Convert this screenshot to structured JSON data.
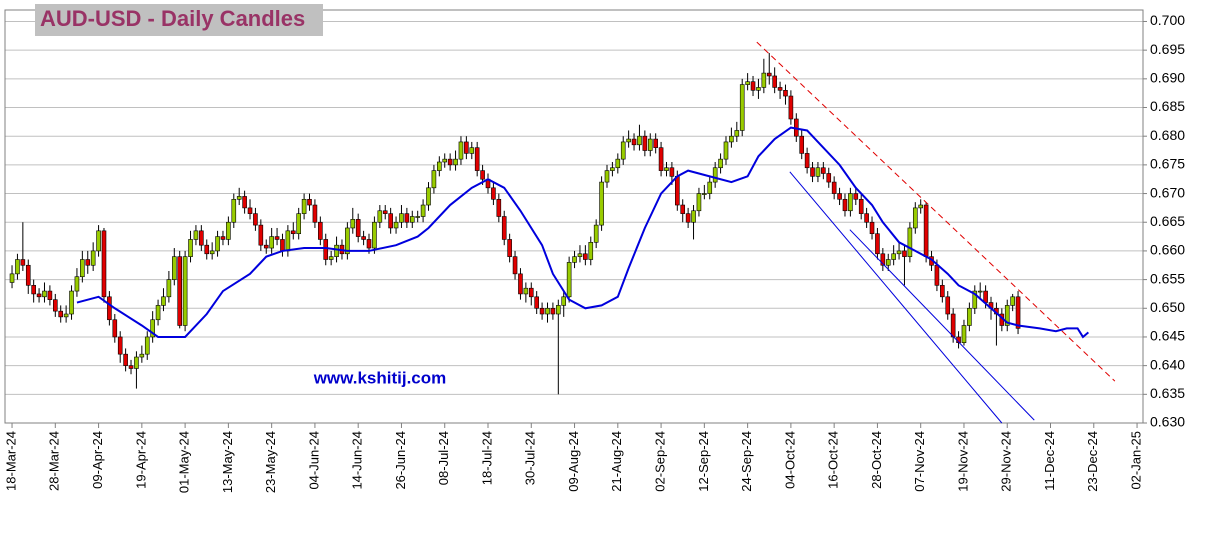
{
  "chart_data": {
    "type": "candlestick",
    "title": "AUD-USD - Daily Candles",
    "annotation": "www.kshitij.com",
    "up_color": "#99cc00",
    "down_color": "#e00000",
    "grid": true,
    "xlim": [
      -1.3,
      209.1
    ],
    "ylim": [
      0.63,
      0.702
    ],
    "yticks": [
      {
        "value": 0.63,
        "label": "0.630"
      },
      0.635,
      {
        "value": 0.64,
        "label": "0.640"
      },
      0.645,
      {
        "value": 0.65,
        "label": "0.650"
      },
      0.655,
      {
        "value": 0.66,
        "label": "0.660"
      },
      0.665,
      {
        "value": 0.67,
        "label": "0.670"
      },
      0.675,
      {
        "value": 0.68,
        "label": "0.680"
      },
      0.685,
      {
        "value": 0.69,
        "label": "0.690"
      },
      0.695,
      {
        "value": 0.7,
        "label": "0.700"
      }
    ],
    "xticks": [
      {
        "value": 0,
        "label": "18-Mar-24"
      },
      {
        "value": 8,
        "label": "28-Mar-24"
      },
      {
        "value": 16,
        "label": "09-Apr-24"
      },
      {
        "value": 24,
        "label": "19-Apr-24"
      },
      {
        "value": 32,
        "label": "01-May-24"
      },
      {
        "value": 40,
        "label": "13-May-24"
      },
      {
        "value": 48,
        "label": "23-May-24"
      },
      {
        "value": 56,
        "label": "04-Jun-24"
      },
      {
        "value": 64,
        "label": "14-Jun-24"
      },
      {
        "value": 72,
        "label": "26-Jun-24"
      },
      {
        "value": 80,
        "label": "08-Jul-24"
      },
      {
        "value": 88,
        "label": "18-Jul-24"
      },
      {
        "value": 96,
        "label": "30-Jul-24"
      },
      {
        "value": 104,
        "label": "09-Aug-24"
      },
      {
        "value": 112,
        "label": "21-Aug-24"
      },
      {
        "value": 120,
        "label": "02-Sep-24"
      },
      {
        "value": 128,
        "label": "12-Sep-24"
      },
      {
        "value": 136,
        "label": "24-Sep-24"
      },
      {
        "value": 144,
        "label": "04-Oct-24"
      },
      {
        "value": 152,
        "label": "16-Oct-24"
      },
      {
        "value": 160,
        "label": "28-Oct-24"
      },
      {
        "value": 168,
        "label": "07-Nov-24"
      },
      {
        "value": 176,
        "label": "19-Nov-24"
      },
      {
        "value": 184,
        "label": "29-Nov-24"
      },
      {
        "value": 192,
        "label": "11-Dec-24"
      },
      {
        "value": 200,
        "label": "23-Dec-24"
      },
      {
        "value": 208,
        "label": "02-Jan-25"
      }
    ],
    "open": [
      0.6545,
      0.656,
      0.6585,
      0.6575,
      0.654,
      0.6525,
      0.652,
      0.653,
      0.6515,
      0.6495,
      0.6485,
      0.649,
      0.653,
      0.6555,
      0.6585,
      0.6575,
      0.66,
      0.6635,
      0.652,
      0.648,
      0.645,
      0.642,
      0.64,
      0.6395,
      0.6415,
      0.642,
      0.645,
      0.648,
      0.6505,
      0.652,
      0.655,
      0.659,
      0.647,
      0.659,
      0.662,
      0.6635,
      0.661,
      0.6595,
      0.66,
      0.6625,
      0.662,
      0.665,
      0.669,
      0.6695,
      0.6675,
      0.6665,
      0.6645,
      0.661,
      0.6605,
      0.6625,
      0.662,
      0.66,
      0.6635,
      0.663,
      0.6665,
      0.669,
      0.668,
      0.665,
      0.662,
      0.6585,
      0.659,
      0.661,
      0.6595,
      0.664,
      0.6655,
      0.6625,
      0.662,
      0.6605,
      0.665,
      0.667,
      0.6665,
      0.664,
      0.665,
      0.6665,
      0.665,
      0.666,
      0.666,
      0.668,
      0.671,
      0.674,
      0.6755,
      0.676,
      0.675,
      0.676,
      0.679,
      0.677,
      0.678,
      0.674,
      0.6725,
      0.671,
      0.669,
      0.666,
      0.662,
      0.659,
      0.656,
      0.6525,
      0.6535,
      0.652,
      0.65,
      0.649,
      0.65,
      0.649,
      0.6505,
      0.652,
      0.658,
      0.659,
      0.6595,
      0.6585,
      0.6615,
      0.6645,
      0.672,
      0.674,
      0.6745,
      0.676,
      0.679,
      0.6795,
      0.6785,
      0.68,
      0.6775,
      0.6795,
      0.678,
      0.674,
      0.6745,
      0.673,
      0.668,
      0.6665,
      0.665,
      0.667,
      0.67,
      0.67,
      0.672,
      0.6745,
      0.676,
      0.679,
      0.68,
      0.681,
      0.689,
      0.6895,
      0.688,
      0.6885,
      0.691,
      0.6905,
      0.6885,
      0.688,
      0.687,
      0.683,
      0.68,
      0.677,
      0.6745,
      0.673,
      0.6745,
      0.6735,
      0.672,
      0.67,
      0.669,
      0.667,
      0.67,
      0.669,
      0.6665,
      0.665,
      0.663,
      0.6595,
      0.6575,
      0.6585,
      0.6595,
      0.66,
      0.659,
      0.664,
      0.6675,
      0.668,
      0.659,
      0.6575,
      0.654,
      0.652,
      0.649,
      0.645,
      0.644,
      0.647,
      0.65,
      0.653,
      0.653,
      0.651,
      0.65,
      0.649,
      0.647,
      0.6505,
      0.652
    ],
    "high": [
      0.6575,
      0.6595,
      0.665,
      0.6585,
      0.655,
      0.6535,
      0.6545,
      0.654,
      0.6525,
      0.6505,
      0.6505,
      0.654,
      0.657,
      0.66,
      0.66,
      0.6615,
      0.6645,
      0.664,
      0.653,
      0.649,
      0.646,
      0.643,
      0.641,
      0.6425,
      0.6435,
      0.646,
      0.6495,
      0.6515,
      0.6535,
      0.6565,
      0.6605,
      0.66,
      0.66,
      0.6635,
      0.6645,
      0.6645,
      0.662,
      0.6615,
      0.6635,
      0.6635,
      0.666,
      0.67,
      0.671,
      0.6705,
      0.669,
      0.6675,
      0.6655,
      0.662,
      0.664,
      0.664,
      0.663,
      0.6645,
      0.665,
      0.6675,
      0.67,
      0.67,
      0.669,
      0.666,
      0.663,
      0.66,
      0.6625,
      0.662,
      0.665,
      0.6675,
      0.6665,
      0.6635,
      0.663,
      0.666,
      0.668,
      0.668,
      0.6675,
      0.666,
      0.668,
      0.6675,
      0.667,
      0.667,
      0.669,
      0.672,
      0.675,
      0.6765,
      0.677,
      0.677,
      0.6775,
      0.68,
      0.68,
      0.679,
      0.679,
      0.675,
      0.6735,
      0.672,
      0.67,
      0.667,
      0.663,
      0.66,
      0.657,
      0.6545,
      0.6545,
      0.653,
      0.651,
      0.651,
      0.651,
      0.6515,
      0.653,
      0.659,
      0.66,
      0.661,
      0.661,
      0.6625,
      0.6655,
      0.673,
      0.675,
      0.6755,
      0.677,
      0.68,
      0.681,
      0.6805,
      0.682,
      0.681,
      0.6805,
      0.6805,
      0.679,
      0.6755,
      0.6755,
      0.674,
      0.669,
      0.6675,
      0.668,
      0.671,
      0.6715,
      0.673,
      0.6755,
      0.677,
      0.68,
      0.6815,
      0.6825,
      0.69,
      0.691,
      0.6905,
      0.69,
      0.6935,
      0.6945,
      0.692,
      0.6895,
      0.689,
      0.688,
      0.684,
      0.681,
      0.678,
      0.6755,
      0.6755,
      0.6755,
      0.6745,
      0.673,
      0.671,
      0.67,
      0.671,
      0.671,
      0.67,
      0.6675,
      0.666,
      0.664,
      0.6605,
      0.6595,
      0.661,
      0.6615,
      0.661,
      0.665,
      0.6685,
      0.669,
      0.6685,
      0.66,
      0.6585,
      0.655,
      0.653,
      0.65,
      0.646,
      0.648,
      0.651,
      0.654,
      0.6545,
      0.654,
      0.652,
      0.651,
      0.65,
      0.6515,
      0.6525,
      0.653
    ],
    "low": [
      0.6535,
      0.655,
      0.6565,
      0.6525,
      0.651,
      0.651,
      0.651,
      0.6505,
      0.6485,
      0.6475,
      0.6475,
      0.648,
      0.652,
      0.6545,
      0.656,
      0.6565,
      0.659,
      0.651,
      0.647,
      0.644,
      0.6405,
      0.639,
      0.6385,
      0.636,
      0.6405,
      0.641,
      0.644,
      0.647,
      0.6495,
      0.651,
      0.654,
      0.6465,
      0.646,
      0.658,
      0.661,
      0.66,
      0.6585,
      0.6585,
      0.659,
      0.661,
      0.661,
      0.664,
      0.668,
      0.6665,
      0.6655,
      0.6635,
      0.66,
      0.6595,
      0.6595,
      0.661,
      0.659,
      0.659,
      0.662,
      0.662,
      0.6655,
      0.667,
      0.664,
      0.661,
      0.6575,
      0.6575,
      0.658,
      0.6585,
      0.6585,
      0.663,
      0.6615,
      0.661,
      0.6595,
      0.6595,
      0.664,
      0.6655,
      0.663,
      0.663,
      0.664,
      0.664,
      0.664,
      0.665,
      0.665,
      0.667,
      0.67,
      0.673,
      0.6745,
      0.674,
      0.674,
      0.675,
      0.676,
      0.676,
      0.673,
      0.6715,
      0.67,
      0.668,
      0.665,
      0.661,
      0.658,
      0.655,
      0.6515,
      0.651,
      0.6505,
      0.649,
      0.648,
      0.6475,
      0.648,
      0.635,
      0.6485,
      0.651,
      0.657,
      0.658,
      0.6575,
      0.6575,
      0.6605,
      0.6635,
      0.671,
      0.673,
      0.6735,
      0.675,
      0.678,
      0.6775,
      0.6775,
      0.6765,
      0.6765,
      0.677,
      0.673,
      0.673,
      0.6715,
      0.667,
      0.665,
      0.664,
      0.662,
      0.666,
      0.669,
      0.669,
      0.671,
      0.6735,
      0.675,
      0.678,
      0.679,
      0.68,
      0.688,
      0.687,
      0.6865,
      0.6875,
      0.689,
      0.6875,
      0.6865,
      0.6855,
      0.682,
      0.679,
      0.676,
      0.6735,
      0.672,
      0.672,
      0.6725,
      0.671,
      0.669,
      0.668,
      0.666,
      0.666,
      0.668,
      0.6655,
      0.664,
      0.662,
      0.6585,
      0.6565,
      0.6565,
      0.6575,
      0.6585,
      0.654,
      0.658,
      0.663,
      0.6665,
      0.658,
      0.6565,
      0.653,
      0.651,
      0.648,
      0.644,
      0.643,
      0.6435,
      0.646,
      0.649,
      0.6515,
      0.65,
      0.648,
      0.6435,
      0.646,
      0.646,
      0.6495,
      0.6455
    ],
    "close": [
      0.656,
      0.6585,
      0.6575,
      0.654,
      0.6525,
      0.652,
      0.653,
      0.6515,
      0.6495,
      0.6485,
      0.649,
      0.653,
      0.6555,
      0.6585,
      0.6575,
      0.66,
      0.6635,
      0.652,
      0.648,
      0.645,
      0.642,
      0.64,
      0.6395,
      0.6415,
      0.642,
      0.645,
      0.648,
      0.6505,
      0.652,
      0.655,
      0.659,
      0.647,
      0.659,
      0.662,
      0.6635,
      0.661,
      0.6595,
      0.66,
      0.6625,
      0.662,
      0.665,
      0.669,
      0.6695,
      0.6675,
      0.6665,
      0.6645,
      0.661,
      0.6605,
      0.6625,
      0.662,
      0.66,
      0.6635,
      0.663,
      0.6665,
      0.669,
      0.668,
      0.665,
      0.662,
      0.6585,
      0.659,
      0.661,
      0.6595,
      0.664,
      0.6655,
      0.6625,
      0.662,
      0.6605,
      0.665,
      0.667,
      0.6665,
      0.664,
      0.665,
      0.6665,
      0.665,
      0.666,
      0.666,
      0.668,
      0.671,
      0.674,
      0.6755,
      0.676,
      0.675,
      0.676,
      0.679,
      0.677,
      0.678,
      0.674,
      0.6725,
      0.671,
      0.669,
      0.666,
      0.662,
      0.659,
      0.656,
      0.6525,
      0.6535,
      0.652,
      0.65,
      0.649,
      0.65,
      0.649,
      0.6505,
      0.652,
      0.658,
      0.659,
      0.6595,
      0.6585,
      0.6615,
      0.6645,
      0.672,
      0.674,
      0.6745,
      0.676,
      0.679,
      0.6795,
      0.6785,
      0.68,
      0.6775,
      0.6795,
      0.678,
      0.674,
      0.6745,
      0.673,
      0.668,
      0.6665,
      0.665,
      0.667,
      0.67,
      0.67,
      0.672,
      0.6745,
      0.676,
      0.679,
      0.68,
      0.681,
      0.689,
      0.6895,
      0.688,
      0.6885,
      0.691,
      0.6905,
      0.6885,
      0.688,
      0.687,
      0.683,
      0.68,
      0.677,
      0.6745,
      0.673,
      0.6745,
      0.6735,
      0.672,
      0.67,
      0.669,
      0.667,
      0.67,
      0.669,
      0.6665,
      0.665,
      0.663,
      0.6595,
      0.6575,
      0.6585,
      0.6595,
      0.66,
      0.659,
      0.664,
      0.6675,
      0.668,
      0.659,
      0.6575,
      0.654,
      0.652,
      0.649,
      0.645,
      0.644,
      0.647,
      0.65,
      0.653,
      0.653,
      0.651,
      0.65,
      0.649,
      0.647,
      0.6505,
      0.652,
      0.6465
    ],
    "moving_average": {
      "color": "#0000dd",
      "x": [
        12,
        16,
        19,
        24,
        27,
        32,
        36,
        39,
        44,
        47,
        50,
        54,
        58,
        62,
        66,
        71,
        75,
        77,
        81,
        85,
        88,
        91,
        94,
        98,
        100,
        103,
        106,
        109,
        112,
        114,
        117,
        120,
        123,
        125,
        129,
        133,
        136,
        138,
        141,
        144,
        147,
        149,
        153,
        156,
        159,
        161,
        164,
        167,
        170,
        173,
        175,
        178,
        181,
        184,
        186,
        190,
        193,
        195,
        197,
        198,
        199
      ],
      "values": [
        0.651,
        0.652,
        0.65,
        0.647,
        0.645,
        0.645,
        0.649,
        0.653,
        0.656,
        0.659,
        0.66,
        0.6605,
        0.6605,
        0.66,
        0.66,
        0.661,
        0.6625,
        0.664,
        0.668,
        0.671,
        0.6725,
        0.671,
        0.667,
        0.661,
        0.656,
        0.6515,
        0.65,
        0.6505,
        0.652,
        0.657,
        0.664,
        0.67,
        0.673,
        0.674,
        0.673,
        0.672,
        0.673,
        0.6765,
        0.6795,
        0.6815,
        0.681,
        0.679,
        0.675,
        0.671,
        0.668,
        0.665,
        0.6615,
        0.66,
        0.6585,
        0.656,
        0.654,
        0.6525,
        0.65,
        0.6475,
        0.647,
        0.6465,
        0.646,
        0.6465,
        0.6465,
        0.645,
        0.6458
      ]
    },
    "trend_lines": [
      {
        "color": "#e00000",
        "style": "dashed",
        "x": [
          137.7,
          203.9
        ],
        "values": [
          0.6964,
          0.6373
        ]
      },
      {
        "color": "#0000dd",
        "style": "solid",
        "x": [
          143.8,
          183
        ],
        "values": [
          0.6738,
          0.63
        ]
      },
      {
        "color": "#0000dd",
        "style": "solid",
        "x": [
          154.9,
          189
        ],
        "values": [
          0.6637,
          0.6305
        ]
      }
    ]
  }
}
